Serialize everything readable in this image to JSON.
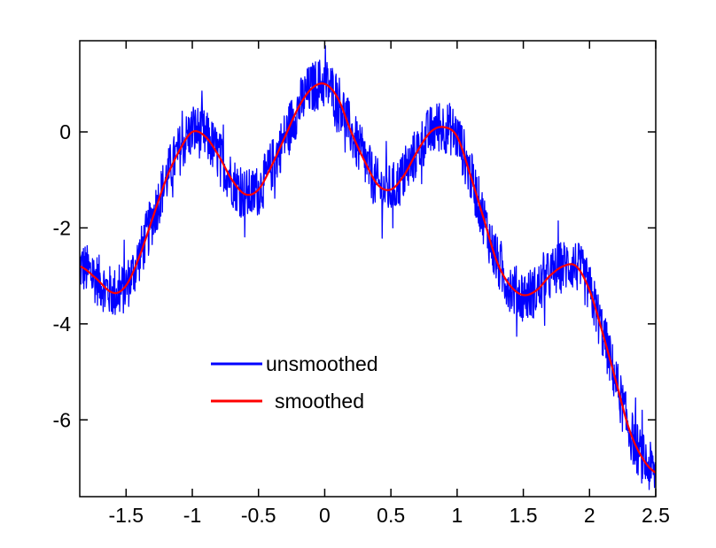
{
  "chart_data": {
    "type": "line",
    "title": "",
    "xlabel": "",
    "ylabel": "",
    "xlim": [
      -1.85,
      2.5
    ],
    "ylim": [
      -7.6,
      1.9
    ],
    "grid": false,
    "x_ticks": [
      -1.5,
      -1,
      -0.5,
      0,
      0.5,
      1,
      1.5,
      2,
      2.5
    ],
    "x_tick_labels": [
      "-1.5",
      "-1",
      "-0.5",
      "0",
      "0.5",
      "1",
      "1.5",
      "2",
      "2.5"
    ],
    "y_ticks": [
      -6,
      -4,
      -2,
      0
    ],
    "y_tick_labels": [
      "-6",
      "-4",
      "-2",
      "0"
    ],
    "legend": {
      "placement": "center-left",
      "entries": [
        {
          "label": "unsmoothed",
          "color": "#0000ff"
        },
        {
          "label": "smoothed",
          "color": "#ff0000"
        }
      ]
    },
    "series": [
      {
        "name": "unsmoothed",
        "color": "#0000ff",
        "style": "noisy",
        "noise_amplitude": 0.55,
        "x": [
          -1.85,
          -1.75,
          -1.6,
          -1.5,
          -1.4,
          -1.3,
          -1.2,
          -1.1,
          -1.0,
          -0.9,
          -0.8,
          -0.7,
          -0.6,
          -0.5,
          -0.4,
          -0.3,
          -0.2,
          -0.1,
          0.0,
          0.1,
          0.2,
          0.3,
          0.4,
          0.5,
          0.6,
          0.7,
          0.8,
          0.9,
          1.0,
          1.1,
          1.2,
          1.3,
          1.4,
          1.5,
          1.6,
          1.7,
          1.8,
          1.9,
          2.0,
          2.1,
          2.2,
          2.3,
          2.4,
          2.5
        ],
        "y": [
          -2.8,
          -3.0,
          -3.35,
          -3.2,
          -2.6,
          -1.8,
          -1.0,
          -0.4,
          0.0,
          -0.1,
          -0.5,
          -1.0,
          -1.3,
          -1.2,
          -0.7,
          -0.1,
          0.5,
          0.9,
          1.0,
          0.7,
          0.0,
          -0.6,
          -1.1,
          -1.2,
          -0.9,
          -0.4,
          0.0,
          0.1,
          -0.1,
          -0.9,
          -1.8,
          -2.7,
          -3.2,
          -3.4,
          -3.3,
          -3.0,
          -2.8,
          -2.8,
          -3.3,
          -4.2,
          -5.2,
          -6.2,
          -6.8,
          -7.1
        ]
      },
      {
        "name": "smoothed",
        "color": "#ff0000",
        "style": "smooth",
        "x": [
          -1.85,
          -1.75,
          -1.6,
          -1.5,
          -1.4,
          -1.3,
          -1.2,
          -1.1,
          -1.0,
          -0.9,
          -0.8,
          -0.7,
          -0.6,
          -0.5,
          -0.4,
          -0.3,
          -0.2,
          -0.1,
          0.0,
          0.1,
          0.2,
          0.3,
          0.4,
          0.5,
          0.6,
          0.7,
          0.8,
          0.9,
          1.0,
          1.1,
          1.2,
          1.3,
          1.4,
          1.5,
          1.6,
          1.7,
          1.8,
          1.9,
          2.0,
          2.1,
          2.2,
          2.3,
          2.4,
          2.5
        ],
        "y": [
          -2.8,
          -3.0,
          -3.35,
          -3.2,
          -2.6,
          -1.8,
          -1.0,
          -0.4,
          0.0,
          -0.1,
          -0.5,
          -1.0,
          -1.3,
          -1.2,
          -0.7,
          -0.1,
          0.5,
          0.9,
          1.0,
          0.7,
          0.0,
          -0.6,
          -1.1,
          -1.2,
          -0.9,
          -0.4,
          0.0,
          0.1,
          -0.1,
          -0.9,
          -1.8,
          -2.7,
          -3.2,
          -3.4,
          -3.3,
          -3.0,
          -2.8,
          -2.8,
          -3.3,
          -4.2,
          -5.2,
          -6.2,
          -6.8,
          -7.1
        ]
      }
    ]
  }
}
